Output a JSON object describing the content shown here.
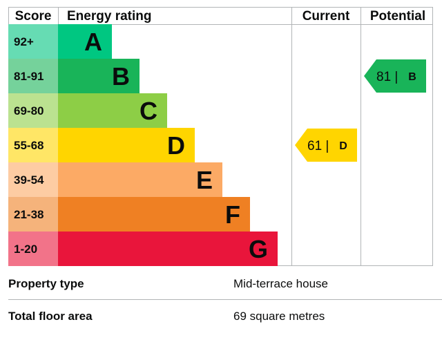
{
  "chart_data": {
    "type": "table",
    "headers": {
      "score": "Score",
      "rating": "Energy rating",
      "current": "Current",
      "potential": "Potential"
    },
    "bands": [
      {
        "letter": "A",
        "range": "92+",
        "color": "#00c781",
        "score_color": "#66dcb3"
      },
      {
        "letter": "B",
        "range": "81-91",
        "color": "#19b459",
        "score_color": "#75d29b"
      },
      {
        "letter": "C",
        "range": "69-80",
        "color": "#8dce46",
        "score_color": "#bbe290"
      },
      {
        "letter": "D",
        "range": "55-68",
        "color": "#ffd500",
        "score_color": "#ffe666"
      },
      {
        "letter": "E",
        "range": "39-54",
        "color": "#fcaa65",
        "score_color": "#fdcca3"
      },
      {
        "letter": "F",
        "range": "21-38",
        "color": "#ef8023",
        "score_color": "#f5b37b"
      },
      {
        "letter": "G",
        "range": "1-20",
        "color": "#e9153b",
        "score_color": "#f27389"
      }
    ],
    "current": {
      "value": 61,
      "label": "61 |",
      "letter": "D",
      "color": "#ffd500"
    },
    "potential": {
      "value": 81,
      "label": "81 |",
      "letter": "B",
      "color": "#19b459"
    }
  },
  "property": {
    "type_label": "Property type",
    "type_value": "Mid-terrace house",
    "area_label": "Total floor area",
    "area_value": "69 square metres"
  }
}
